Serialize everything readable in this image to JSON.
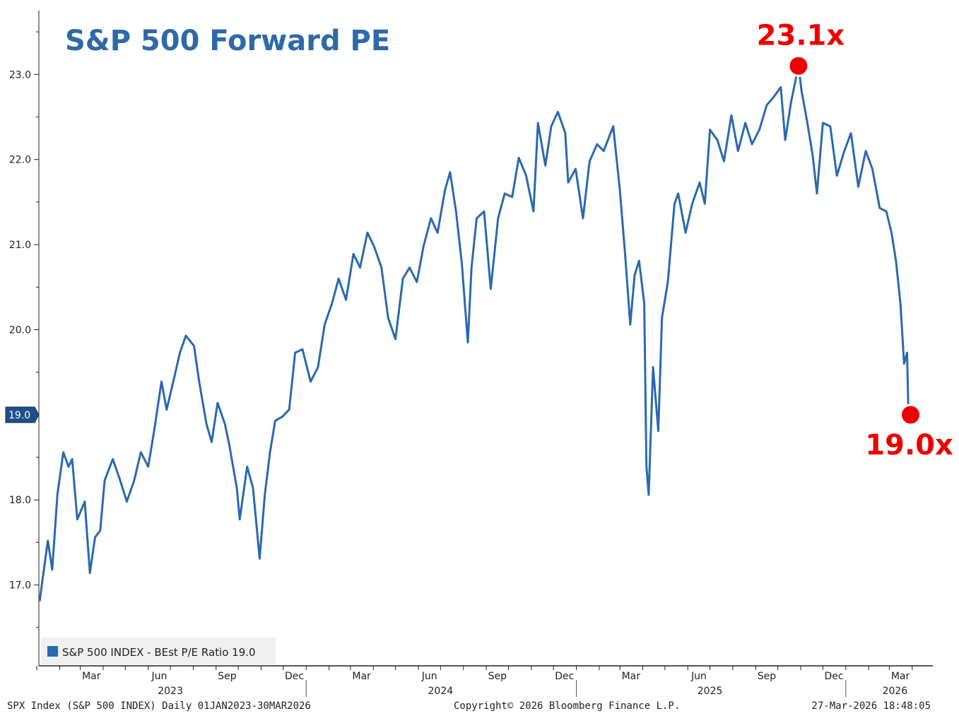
{
  "chart_data": {
    "type": "line",
    "title": "S&P 500 Forward PE",
    "xlabel": "",
    "ylabel": "",
    "ylim": [
      16.05,
      23.75
    ],
    "xlim": [
      "2023-01-01",
      "2026-04-10"
    ],
    "grid": false,
    "y_ticks": [
      "17.0",
      "18.0",
      "19.0",
      "20.0",
      "21.0",
      "22.0",
      "23.0"
    ],
    "x_month_ticks": [
      {
        "label": "Mar",
        "date": "2023-03-16"
      },
      {
        "label": "Jun",
        "date": "2023-06-16"
      },
      {
        "label": "Sep",
        "date": "2023-09-16"
      },
      {
        "label": "Dec",
        "date": "2023-12-16"
      },
      {
        "label": "Mar",
        "date": "2024-03-16"
      },
      {
        "label": "Jun",
        "date": "2024-06-16"
      },
      {
        "label": "Sep",
        "date": "2024-09-16"
      },
      {
        "label": "Dec",
        "date": "2024-12-16"
      },
      {
        "label": "Mar",
        "date": "2025-03-16"
      },
      {
        "label": "Jun",
        "date": "2025-06-16"
      },
      {
        "label": "Sep",
        "date": "2025-09-16"
      },
      {
        "label": "Dec",
        "date": "2025-12-16"
      },
      {
        "label": "Mar",
        "date": "2026-03-16"
      }
    ],
    "x_year_labels": [
      {
        "label": "2023",
        "date": "2023-07-01"
      },
      {
        "label": "2024",
        "date": "2024-07-01"
      },
      {
        "label": "2025",
        "date": "2025-07-01"
      },
      {
        "label": "2026",
        "date": "2026-03-01"
      }
    ],
    "legend": {
      "placement": "bottom-left",
      "text": "S&P 500 INDEX - BEst P/E Ratio 19.0"
    },
    "last_value_tag": "19.0",
    "annotations": [
      {
        "text": "23.1x",
        "date": "2025-10-29",
        "value": 23.1
      },
      {
        "text": "19.0x",
        "date": "2026-03-27",
        "value": 19.0
      }
    ],
    "series": [
      {
        "color": "#2a6aad",
        "points": [
          [
            "2023-01-05",
            16.81
          ],
          [
            "2023-01-08",
            17.01
          ],
          [
            "2023-01-16",
            17.52
          ],
          [
            "2023-01-22",
            17.18
          ],
          [
            "2023-01-29",
            18.06
          ],
          [
            "2023-02-06",
            18.56
          ],
          [
            "2023-02-13",
            18.39
          ],
          [
            "2023-02-18",
            18.48
          ],
          [
            "2023-02-25",
            17.77
          ],
          [
            "2023-03-07",
            17.98
          ],
          [
            "2023-03-14",
            17.14
          ],
          [
            "2023-03-21",
            17.56
          ],
          [
            "2023-03-28",
            17.64
          ],
          [
            "2023-04-03",
            18.23
          ],
          [
            "2023-04-14",
            18.48
          ],
          [
            "2023-04-24",
            18.23
          ],
          [
            "2023-05-03",
            17.98
          ],
          [
            "2023-05-13",
            18.23
          ],
          [
            "2023-05-22",
            18.56
          ],
          [
            "2023-06-01",
            18.39
          ],
          [
            "2023-06-09",
            18.81
          ],
          [
            "2023-06-19",
            19.39
          ],
          [
            "2023-06-26",
            19.06
          ],
          [
            "2023-07-05",
            19.39
          ],
          [
            "2023-07-14",
            19.73
          ],
          [
            "2023-07-22",
            19.93
          ],
          [
            "2023-08-02",
            19.81
          ],
          [
            "2023-08-09",
            19.39
          ],
          [
            "2023-08-19",
            18.89
          ],
          [
            "2023-08-26",
            18.68
          ],
          [
            "2023-09-03",
            19.14
          ],
          [
            "2023-09-13",
            18.89
          ],
          [
            "2023-09-19",
            18.64
          ],
          [
            "2023-09-29",
            18.14
          ],
          [
            "2023-10-03",
            17.77
          ],
          [
            "2023-10-13",
            18.39
          ],
          [
            "2023-10-21",
            18.14
          ],
          [
            "2023-10-30",
            17.31
          ],
          [
            "2023-11-06",
            18.06
          ],
          [
            "2023-11-13",
            18.56
          ],
          [
            "2023-11-20",
            18.93
          ],
          [
            "2023-11-30",
            18.98
          ],
          [
            "2023-12-09",
            19.06
          ],
          [
            "2023-12-17",
            19.73
          ],
          [
            "2023-12-27",
            19.77
          ],
          [
            "2024-01-07",
            19.39
          ],
          [
            "2024-01-17",
            19.56
          ],
          [
            "2024-01-26",
            20.06
          ],
          [
            "2024-02-05",
            20.31
          ],
          [
            "2024-02-14",
            20.6
          ],
          [
            "2024-02-24",
            20.35
          ],
          [
            "2024-03-05",
            20.89
          ],
          [
            "2024-03-14",
            20.73
          ],
          [
            "2024-03-24",
            21.14
          ],
          [
            "2024-04-02",
            20.98
          ],
          [
            "2024-04-12",
            20.73
          ],
          [
            "2024-04-21",
            20.14
          ],
          [
            "2024-05-01",
            19.89
          ],
          [
            "2024-05-11",
            20.6
          ],
          [
            "2024-05-20",
            20.73
          ],
          [
            "2024-05-30",
            20.56
          ],
          [
            "2024-06-08",
            20.98
          ],
          [
            "2024-06-18",
            21.31
          ],
          [
            "2024-06-27",
            21.14
          ],
          [
            "2024-07-07",
            21.64
          ],
          [
            "2024-07-14",
            21.85
          ],
          [
            "2024-07-22",
            21.39
          ],
          [
            "2024-07-30",
            20.77
          ],
          [
            "2024-08-07",
            19.85
          ],
          [
            "2024-08-12",
            20.73
          ],
          [
            "2024-08-19",
            21.31
          ],
          [
            "2024-08-29",
            21.39
          ],
          [
            "2024-09-07",
            20.48
          ],
          [
            "2024-09-17",
            21.31
          ],
          [
            "2024-09-26",
            21.6
          ],
          [
            "2024-10-06",
            21.56
          ],
          [
            "2024-10-15",
            22.02
          ],
          [
            "2024-10-25",
            21.81
          ],
          [
            "2024-11-04",
            21.39
          ],
          [
            "2024-11-10",
            22.43
          ],
          [
            "2024-11-20",
            21.93
          ],
          [
            "2024-11-28",
            22.39
          ],
          [
            "2024-12-07",
            22.56
          ],
          [
            "2024-12-17",
            22.31
          ],
          [
            "2024-12-21",
            21.73
          ],
          [
            "2024-12-31",
            21.89
          ],
          [
            "2025-01-10",
            21.31
          ],
          [
            "2025-01-19",
            21.98
          ],
          [
            "2025-01-29",
            22.18
          ],
          [
            "2025-02-07",
            22.1
          ],
          [
            "2025-02-20",
            22.39
          ],
          [
            "2025-03-01",
            21.64
          ],
          [
            "2025-03-08",
            20.89
          ],
          [
            "2025-03-15",
            20.06
          ],
          [
            "2025-03-21",
            20.64
          ],
          [
            "2025-03-27",
            20.81
          ],
          [
            "2025-04-03",
            20.31
          ],
          [
            "2025-04-06",
            18.39
          ],
          [
            "2025-04-09",
            18.06
          ],
          [
            "2025-04-15",
            19.56
          ],
          [
            "2025-04-22",
            18.81
          ],
          [
            "2025-04-27",
            20.14
          ],
          [
            "2025-05-05",
            20.56
          ],
          [
            "2025-05-14",
            21.48
          ],
          [
            "2025-05-19",
            21.6
          ],
          [
            "2025-05-29",
            21.14
          ],
          [
            "2025-06-07",
            21.48
          ],
          [
            "2025-06-17",
            21.73
          ],
          [
            "2025-06-24",
            21.48
          ],
          [
            "2025-07-01",
            22.35
          ],
          [
            "2025-07-11",
            22.23
          ],
          [
            "2025-07-20",
            21.98
          ],
          [
            "2025-07-30",
            22.52
          ],
          [
            "2025-08-08",
            22.1
          ],
          [
            "2025-08-18",
            22.43
          ],
          [
            "2025-08-27",
            22.18
          ],
          [
            "2025-09-06",
            22.35
          ],
          [
            "2025-09-16",
            22.64
          ],
          [
            "2025-09-25",
            22.73
          ],
          [
            "2025-10-05",
            22.85
          ],
          [
            "2025-10-11",
            22.23
          ],
          [
            "2025-10-19",
            22.68
          ],
          [
            "2025-10-29",
            23.1
          ],
          [
            "2025-11-02",
            22.81
          ],
          [
            "2025-11-09",
            22.48
          ],
          [
            "2025-11-17",
            22.06
          ],
          [
            "2025-11-23",
            21.6
          ],
          [
            "2025-12-01",
            22.43
          ],
          [
            "2025-12-11",
            22.39
          ],
          [
            "2025-12-20",
            21.81
          ],
          [
            "2025-12-30",
            22.1
          ],
          [
            "2026-01-08",
            22.31
          ],
          [
            "2026-01-18",
            21.68
          ],
          [
            "2026-01-28",
            22.1
          ],
          [
            "2026-02-06",
            21.89
          ],
          [
            "2026-02-16",
            21.43
          ],
          [
            "2026-02-25",
            21.39
          ],
          [
            "2026-03-04",
            21.14
          ],
          [
            "2026-03-10",
            20.81
          ],
          [
            "2026-03-16",
            20.31
          ],
          [
            "2026-03-21",
            19.6
          ],
          [
            "2026-03-25",
            19.73
          ],
          [
            "2026-03-27",
            19.0
          ]
        ]
      }
    ]
  },
  "footer": {
    "left": "SPX Index (S&P 500 INDEX) Daily 01JAN2023-30MAR2026",
    "center": "Copyright© 2026 Bloomberg Finance L.P.",
    "right": "27-Mar-2026 18:48:05"
  }
}
